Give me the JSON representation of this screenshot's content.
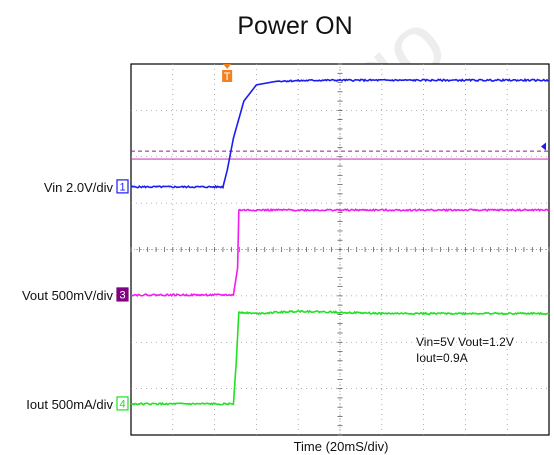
{
  "chart_data": {
    "type": "line",
    "title": "Power ON",
    "xlabel": "Time  (20mS/div)",
    "watermark": "www.go",
    "trigger_marker": "T",
    "grid": true,
    "x_divisions": 10,
    "y_divisions": 8,
    "xlim": [
      0,
      10
    ],
    "ylim": [
      0,
      8
    ],
    "annotations": [
      "Vin=5V  Vout=1.2V",
      "Iout=0.9A"
    ],
    "colors": {
      "ch1": "#1c1cf0",
      "ch3": "#f01cf0",
      "ch4": "#22e022",
      "ch3_box": "#800080",
      "trigger": "#f08020",
      "ref_dashed": "#8a208a",
      "ref_solid": "#d040c0"
    },
    "series": [
      {
        "name": "Vin 2.0V/div",
        "channel": "1",
        "color": "#1c1cf0",
        "baseline_div": 5.35,
        "x": [
          0,
          2.2,
          2.3,
          2.45,
          2.7,
          3.0,
          3.5,
          4.5,
          6.0,
          8.0,
          10
        ],
        "y": [
          5.35,
          5.35,
          5.7,
          6.4,
          7.2,
          7.55,
          7.63,
          7.65,
          7.65,
          7.65,
          7.65
        ]
      },
      {
        "name": "Vout 500mV/div",
        "channel": "3",
        "color": "#f01cf0",
        "baseline_div": 3.02,
        "x": [
          0,
          2.45,
          2.55,
          2.58,
          3.0,
          5.0,
          8.0,
          10
        ],
        "y": [
          3.02,
          3.02,
          3.6,
          4.85,
          4.85,
          4.85,
          4.85,
          4.85
        ]
      },
      {
        "name": "Iout 500mA/div",
        "channel": "4",
        "color": "#22e022",
        "baseline_div": 0.67,
        "x": [
          0,
          2.45,
          2.52,
          2.58,
          3.0,
          4.0,
          6.0,
          8.0,
          10
        ],
        "y": [
          0.67,
          0.67,
          1.6,
          2.65,
          2.62,
          2.67,
          2.62,
          2.62,
          2.62
        ]
      }
    ],
    "reference_levels": [
      {
        "style": "dashed",
        "y": 6.12
      },
      {
        "style": "solid",
        "y": 5.95
      }
    ],
    "trigger_x": 2.3
  }
}
